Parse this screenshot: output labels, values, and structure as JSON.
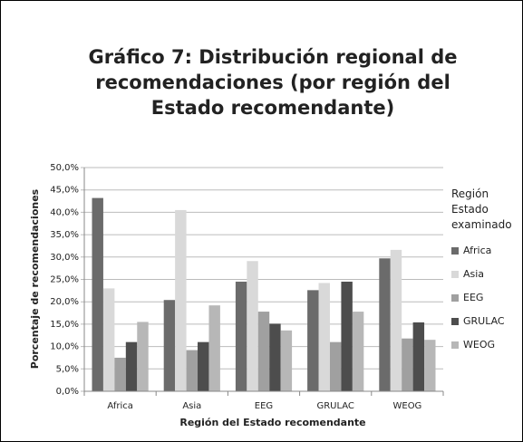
{
  "chart_data": {
    "type": "bar",
    "title": "Gráfico 7: Distribución regional de recomendaciones (por región del Estado recomendante)",
    "x_label": "Región del Estado recomendante",
    "y_label": "Porcentaje de recomendaciones",
    "legend_title": "Región Estado examinado",
    "categories": [
      "Africa",
      "Asia",
      "EEG",
      "GRULAC",
      "WEOG"
    ],
    "series": [
      {
        "name": "Africa",
        "color": "#6b6b6b",
        "values": [
          43.2,
          20.4,
          24.5,
          22.6,
          29.7
        ]
      },
      {
        "name": "Asia",
        "color": "#d9d9d9",
        "values": [
          23.0,
          40.5,
          29.1,
          24.2,
          31.6
        ]
      },
      {
        "name": "EEG",
        "color": "#a0a0a0",
        "values": [
          7.5,
          9.2,
          17.8,
          11.0,
          11.8
        ]
      },
      {
        "name": "GRULAC",
        "color": "#4d4d4d",
        "values": [
          11.0,
          11.0,
          15.1,
          24.5,
          15.4
        ]
      },
      {
        "name": "WEOG",
        "color": "#b7b7b7",
        "values": [
          15.5,
          19.2,
          13.6,
          17.8,
          11.5
        ]
      }
    ],
    "ylim": [
      0,
      50
    ],
    "yticks": [
      {
        "value": 0,
        "label": "0,0%"
      },
      {
        "value": 5,
        "label": "5,0%"
      },
      {
        "value": 10,
        "label": "10,0%"
      },
      {
        "value": 15,
        "label": "15,0%"
      },
      {
        "value": 20,
        "label": "20,0%"
      },
      {
        "value": 25,
        "label": "25,0%"
      },
      {
        "value": 30,
        "label": "30,0%"
      },
      {
        "value": 35,
        "label": "35,0%"
      },
      {
        "value": 40,
        "label": "40,0%"
      },
      {
        "value": 45,
        "label": "45,0%"
      },
      {
        "value": 50,
        "label": "50,0%"
      }
    ],
    "grid": true,
    "legend": "right"
  }
}
